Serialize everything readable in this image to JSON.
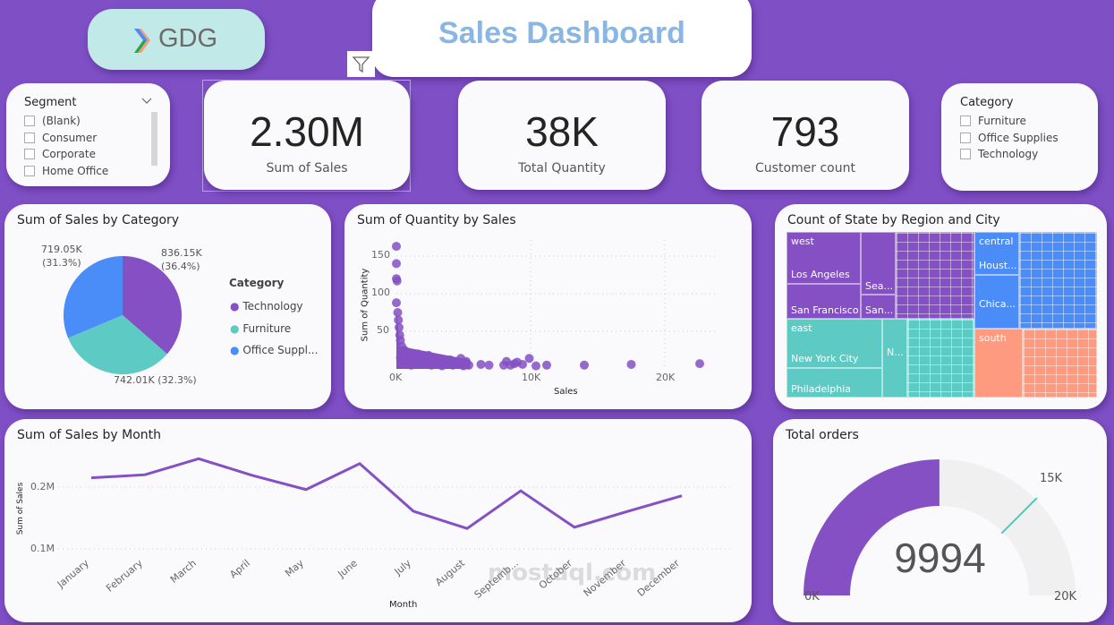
{
  "header": {
    "logo_text": "GDG",
    "title": "Sales Dashboard",
    "title_color": "#8ab6e3"
  },
  "segment_slicer": {
    "title": "Segment",
    "items": [
      "(Blank)",
      "Consumer",
      "Corporate",
      "Home Office"
    ]
  },
  "category_slicer": {
    "title": "Category",
    "items": [
      "Furniture",
      "Office Supplies",
      "Technology"
    ]
  },
  "kpis": [
    {
      "value": "2.30M",
      "label": "Sum of Sales"
    },
    {
      "value": "38K",
      "label": "Total Quantity"
    },
    {
      "value": "793",
      "label": "Customer count"
    }
  ],
  "colors": {
    "background": "#7f4fc6",
    "purple": "#8450c4",
    "teal": "#5dcac4",
    "blue": "#4a8df8",
    "salmon": "#fe9a7f"
  },
  "pie": {
    "title": "Sum of Sales by Category",
    "legend_title": "Category",
    "legend": [
      "Technology",
      "Furniture",
      "Office Suppl..."
    ],
    "labels": [
      "836.15K\n(36.4%)",
      "742.01K (32.3%)",
      "719.05K\n(31.3%)"
    ]
  },
  "scatter": {
    "title": "Sum of Quantity by Sales",
    "xlabel": "Sales",
    "ylabel": "Sum of Quantity",
    "xticks": [
      "0K",
      "10K",
      "20K"
    ],
    "yticks": [
      "50",
      "100",
      "150"
    ]
  },
  "treemap": {
    "title": "Count of State by Region and City",
    "regions": [
      {
        "name": "west",
        "cities": [
          "Los Angeles",
          "San Francisco",
          "Sea...",
          "San..."
        ]
      },
      {
        "name": "central",
        "cities": [
          "Houst...",
          "Chica..."
        ]
      },
      {
        "name": "east",
        "cities": [
          "New York City",
          "Philadelphia",
          "N..."
        ]
      },
      {
        "name": "south",
        "cities": []
      }
    ]
  },
  "line": {
    "title": "Sum of Sales by Month",
    "xlabel": "Month",
    "ylabel": "Sum of Sales",
    "yticks": [
      "0.2M",
      "0.1M"
    ]
  },
  "gauge": {
    "title": "Total orders",
    "value_label": "9994",
    "min_label": "0K",
    "max_label": "20K",
    "target_label": "15K"
  },
  "watermark": "mostaql.com",
  "chart_data": [
    {
      "type": "pie",
      "title": "Sum of Sales by Category",
      "legend_title": "Category",
      "categories": [
        "Technology",
        "Furniture",
        "Office Supplies"
      ],
      "values": [
        836.15,
        742.01,
        719.05
      ],
      "unit": "K",
      "percent": [
        36.4,
        32.3,
        31.3
      ],
      "colors": [
        "#8450c4",
        "#5dcac4",
        "#4a8df8"
      ]
    },
    {
      "type": "scatter",
      "title": "Sum of Quantity by Sales",
      "xlabel": "Sales",
      "ylabel": "Sum of Quantity",
      "xlim": [
        0,
        25000
      ],
      "ylim": [
        0,
        165
      ],
      "grid": true,
      "points": [
        [
          0,
          163
        ],
        [
          0,
          140
        ],
        [
          0,
          120
        ],
        [
          50,
          117
        ],
        [
          0,
          88
        ],
        [
          100,
          75
        ],
        [
          150,
          65
        ],
        [
          200,
          55
        ],
        [
          250,
          45
        ],
        [
          300,
          38
        ],
        [
          400,
          30
        ],
        [
          600,
          25
        ],
        [
          900,
          22
        ],
        [
          1200,
          18
        ],
        [
          1600,
          20
        ],
        [
          2000,
          16
        ],
        [
          2400,
          18
        ],
        [
          2800,
          15
        ],
        [
          3200,
          12
        ],
        [
          3600,
          10
        ],
        [
          4000,
          12
        ],
        [
          4800,
          14
        ],
        [
          5200,
          10
        ],
        [
          500,
          10
        ],
        [
          800,
          8
        ],
        [
          1000,
          12
        ],
        [
          1500,
          6
        ],
        [
          2200,
          8
        ],
        [
          2600,
          5
        ],
        [
          3000,
          7
        ],
        [
          3400,
          4
        ],
        [
          3800,
          6
        ],
        [
          4200,
          5
        ],
        [
          4600,
          8
        ],
        [
          5000,
          4
        ],
        [
          5400,
          5
        ],
        [
          300,
          15
        ],
        [
          700,
          18
        ],
        [
          1100,
          5
        ],
        [
          1800,
          10
        ],
        [
          6300,
          6
        ],
        [
          6900,
          5
        ],
        [
          8000,
          5
        ],
        [
          8200,
          10
        ],
        [
          8500,
          5
        ],
        [
          8800,
          7
        ],
        [
          9000,
          9
        ],
        [
          9400,
          6
        ],
        [
          9900,
          14
        ],
        [
          10400,
          4
        ],
        [
          11200,
          5
        ],
        [
          14000,
          5
        ],
        [
          17500,
          6
        ],
        [
          22600,
          7
        ]
      ]
    },
    {
      "type": "line",
      "title": "Sum of Sales by Month",
      "xlabel": "Month",
      "ylabel": "Sum of Sales",
      "categories": [
        "January",
        "February",
        "March",
        "April",
        "May",
        "June",
        "July",
        "August",
        "Septemb...",
        "October",
        "November",
        "December"
      ],
      "values": [
        0.215,
        0.22,
        0.246,
        0.219,
        0.196,
        0.238,
        0.161,
        0.133,
        0.194,
        0.135,
        0.161,
        0.186
      ],
      "unit": "M",
      "ylim": [
        0.09,
        0.26
      ],
      "grid": true
    },
    {
      "type": "gauge",
      "title": "Total orders",
      "value": 9994,
      "min": 0,
      "max": 20000,
      "target": 15000
    }
  ]
}
